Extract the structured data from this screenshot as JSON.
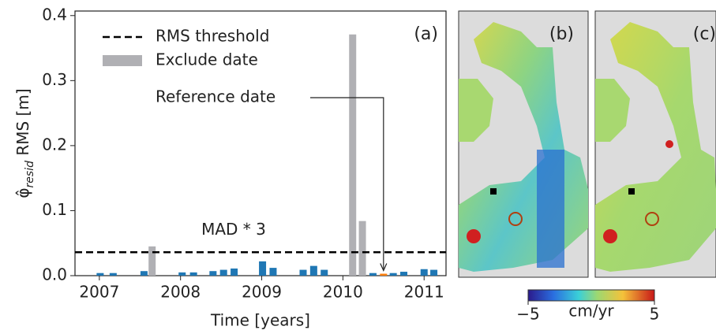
{
  "chart_data": {
    "type": "bar",
    "panel_label": "(a)",
    "xlabel": "Time [years]",
    "ylabel": {
      "symbol": "φ̂",
      "subscript": "resid",
      "text": " RMS [m]"
    },
    "x": [
      2007.01,
      2007.17,
      2007.55,
      2007.65,
      2008.02,
      2008.16,
      2008.4,
      2008.53,
      2008.66,
      2009.01,
      2009.14,
      2009.51,
      2009.64,
      2009.77,
      2010.12,
      2010.24,
      2010.37,
      2010.5,
      2010.62,
      2010.75,
      2011.0,
      2011.12
    ],
    "series": [
      {
        "color": "#1f77b4",
        "values": [
          0.004,
          0.004,
          0.007,
          null,
          0.005,
          0.005,
          0.007,
          0.009,
          0.011,
          0.022,
          0.012,
          0.009,
          0.015,
          0.009,
          null,
          null,
          0.004,
          null,
          0.004,
          0.006,
          0.01,
          0.009
        ]
      },
      {
        "name": "Exclude date",
        "color": "#b0b0b4",
        "values": [
          null,
          null,
          null,
          0.045,
          null,
          null,
          null,
          null,
          null,
          null,
          null,
          null,
          null,
          null,
          0.371,
          0.084,
          null,
          null,
          null,
          null,
          null,
          null
        ]
      },
      {
        "name": "Reference date",
        "color": "#ff7f0e",
        "values": [
          null,
          null,
          null,
          null,
          null,
          null,
          null,
          null,
          null,
          null,
          null,
          null,
          null,
          null,
          null,
          null,
          null,
          0.003,
          null,
          null,
          null,
          null
        ]
      }
    ],
    "threshold": {
      "name": "RMS threshold",
      "annotation": "MAD * 3",
      "value": 0.036,
      "color": "#000000"
    },
    "xlim": [
      2006.7,
      2011.27
    ],
    "xticks": [
      2007,
      2008,
      2009,
      2010,
      2011
    ],
    "ylim": [
      0,
      0.407
    ],
    "yticks": [
      {
        "value": 0,
        "label": "0.0"
      },
      0.1,
      0.2,
      0.3,
      0.4
    ]
  },
  "maps": {
    "panels": [
      "(b)",
      "(c)"
    ],
    "colorbar": {
      "label": "cm/yr",
      "lim": [
        -5,
        5
      ],
      "ticks": [
        {
          "value": -5,
          "label": "−5"
        },
        5
      ]
    }
  }
}
